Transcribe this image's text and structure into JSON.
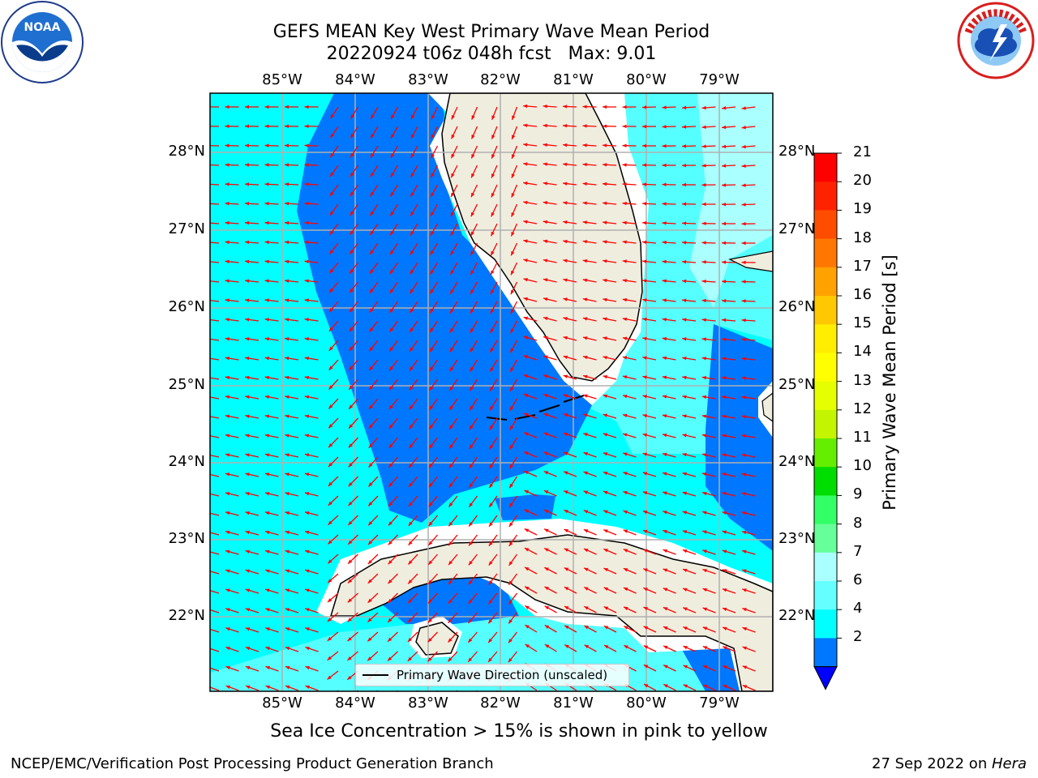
{
  "title": {
    "line1": "GEFS MEAN Key West Primary Wave Mean Period",
    "line2": "20220924 t06z 048h fcst   Max: 9.01"
  },
  "logos": {
    "left": "noaa-logo",
    "right": "national-weather-service-logo",
    "left_text": "NOAA",
    "right_text": "NATIONAL WEATHER SERVICE"
  },
  "axes": {
    "lon_labels": [
      "85°W",
      "84°W",
      "83°W",
      "82°W",
      "81°W",
      "80°W",
      "79°W"
    ],
    "lat_labels": [
      "28°N",
      "27°N",
      "26°N",
      "25°N",
      "24°N",
      "23°N",
      "22°N"
    ]
  },
  "colorbar": {
    "title": "Primary Wave Mean Period [s]",
    "ticks": [
      "21",
      "20",
      "19",
      "18",
      "17",
      "16",
      "15",
      "14",
      "13",
      "12",
      "11",
      "10",
      "9",
      "8",
      "7",
      "6",
      "4",
      "2"
    ],
    "colors": [
      "#ff0000",
      "#ff2200",
      "#ff4d00",
      "#ff7700",
      "#ffa200",
      "#ffc800",
      "#ffee00",
      "#ffff00",
      "#e6ff00",
      "#c3f500",
      "#66ee00",
      "#00dd00",
      "#33ff66",
      "#66ff99",
      "#aaffff",
      "#66ffff",
      "#00ffff",
      "#0077ff",
      "#0000ff"
    ]
  },
  "legend": {
    "label": "Primary Wave Direction (unscaled)"
  },
  "note": "Sea Ice Concentration > 15% is shown in pink to yellow",
  "footer": {
    "left": "NCEP/EMC/Verification Post Processing Product Generation Branch",
    "right_prefix": "27 Sep 2022 on ",
    "right_host": "Hera"
  },
  "colors": {
    "land": "#efedde",
    "sea_light": "#00ffff",
    "sea_mid": "#55ffff",
    "sea_pale": "#aaffff",
    "sea_deep": "#0077ff",
    "arrow": "#ff0000",
    "grid": "#b0b0b0"
  }
}
